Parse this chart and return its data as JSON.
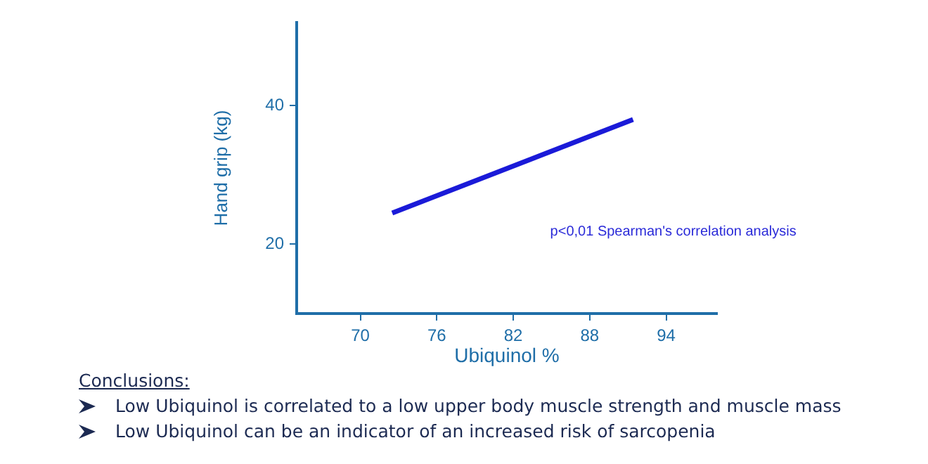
{
  "chart_data": {
    "type": "line",
    "xlabel": "Ubiquinol %",
    "ylabel": "Hand grip (kg)",
    "x": [
      72.5,
      91.4
    ],
    "series": [
      {
        "color": "#1a1ad8",
        "values": [
          24.5,
          38.0
        ]
      }
    ],
    "xlim": [
      65,
      98
    ],
    "xticks": [
      70,
      76,
      82,
      88,
      94
    ],
    "ylim": [
      10,
      52
    ],
    "yticks": [
      20,
      40
    ],
    "grid": false,
    "legend": false,
    "marker": "none",
    "line_style": "solid",
    "annotations": [
      "p<0,01 Spearman's correlation analysis",
      "Conclusions:",
      "Low Ubiquinol is correlated to a low upper body muscle strength and muscle mass",
      "Low Ubiquinol can be an indicator of an increased risk of sarcopenia"
    ]
  }
}
